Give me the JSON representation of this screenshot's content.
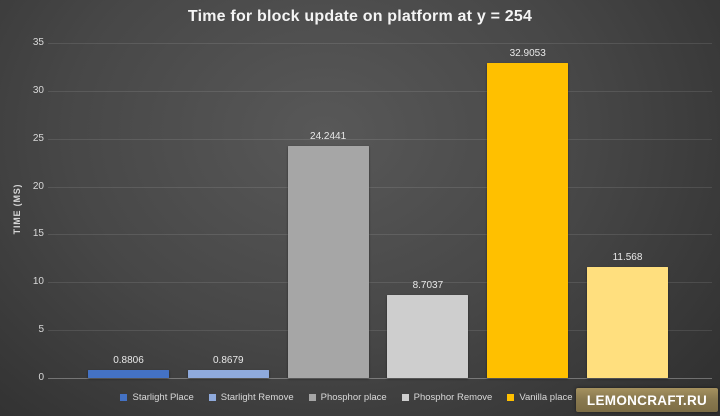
{
  "page": {
    "watermark_text": "LEMONCRAFT.RU"
  },
  "chart_data": {
    "type": "bar",
    "title": "Time for block update on platform at y = 254",
    "xlabel": "",
    "ylabel": "TIME (MS)",
    "ylim": [
      0,
      35
    ],
    "yticks": [
      0,
      5,
      10,
      15,
      20,
      25,
      30,
      35
    ],
    "grid": true,
    "legend_position": "bottom",
    "theme": {
      "background": "dark-gray-gradient",
      "title_color": "#f4f4f4",
      "tick_label_color": "#d9d9d9",
      "data_label_color": "#e8e8e8",
      "gridline_color": "rgba(255,255,255,0.10)",
      "watermark_bg": "#8a7a50"
    },
    "series": [
      {
        "name": "Starlight Place",
        "value": 0.8806,
        "data_label": "0.8806",
        "color": "#4472c4"
      },
      {
        "name": "Starlight Remove",
        "value": 0.8679,
        "data_label": "0.8679",
        "color": "#8faadc"
      },
      {
        "name": "Phosphor place",
        "value": 24.2441,
        "data_label": "24.2441",
        "color": "#a6a6a6"
      },
      {
        "name": "Phosphor Remove",
        "value": 8.7037,
        "data_label": "8.7037",
        "color": "#cecece"
      },
      {
        "name": "Vanilla place",
        "value": 32.9053,
        "data_label": "32.9053",
        "color": "#ffc000"
      },
      {
        "name": "",
        "value": 11.568,
        "data_label": "11.568",
        "color": "#ffdf7e",
        "legend_label_occluded_by_watermark": true
      }
    ]
  }
}
